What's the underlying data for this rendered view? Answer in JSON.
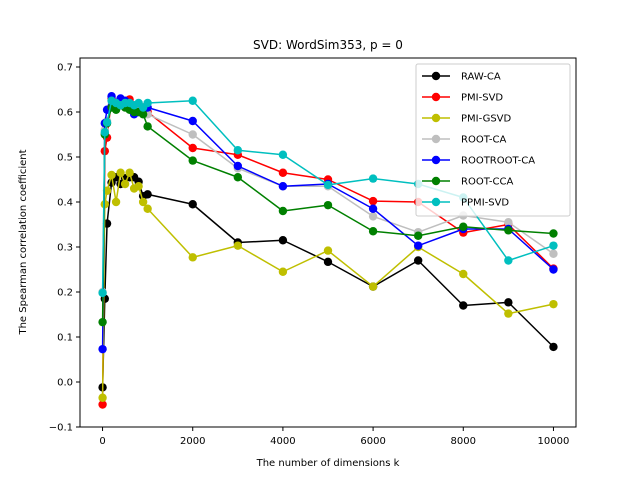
{
  "chart_data": {
    "type": "line",
    "title": "SVD: WordSim353, p = 0",
    "xlabel": "The number of dimensions k",
    "ylabel": "The Spearman correlation coefficient",
    "xlim": [
      -500,
      10500
    ],
    "ylim": [
      -0.1,
      0.72
    ],
    "xticks": [
      0,
      2000,
      4000,
      6000,
      8000,
      10000
    ],
    "xtick_labels": [
      "0",
      "2000",
      "4000",
      "6000",
      "8000",
      "10000"
    ],
    "yticks": [
      -0.1,
      0.0,
      0.1,
      0.2,
      0.3,
      0.4,
      0.5,
      0.6,
      0.7
    ],
    "ytick_labels": [
      "−0.1",
      "0.0",
      "0.1",
      "0.2",
      "0.3",
      "0.4",
      "0.5",
      "0.6",
      "0.7"
    ],
    "grid": false,
    "legend_position": "top-right",
    "series": [
      {
        "name": "RAW-CA",
        "color": "#000000",
        "points": [
          [
            1,
            -0.012
          ],
          [
            50,
            0.185
          ],
          [
            100,
            0.352
          ],
          [
            200,
            0.443
          ],
          [
            300,
            0.455
          ],
          [
            400,
            0.44
          ],
          [
            500,
            0.453
          ],
          [
            600,
            0.455
          ],
          [
            700,
            0.455
          ],
          [
            800,
            0.445
          ],
          [
            900,
            0.413
          ],
          [
            1000,
            0.417
          ],
          [
            2000,
            0.395
          ],
          [
            3000,
            0.31
          ],
          [
            4000,
            0.315
          ],
          [
            5000,
            0.267
          ],
          [
            6000,
            0.212
          ],
          [
            7000,
            0.27
          ],
          [
            8000,
            0.17
          ],
          [
            9000,
            0.177
          ],
          [
            10000,
            0.078
          ]
        ]
      },
      {
        "name": "PMI-SVD",
        "color": "#ff0000",
        "points": [
          [
            1,
            -0.05
          ],
          [
            50,
            0.513
          ],
          [
            100,
            0.543
          ],
          [
            200,
            0.63
          ],
          [
            300,
            0.62
          ],
          [
            400,
            0.625
          ],
          [
            500,
            0.62
          ],
          [
            600,
            0.628
          ],
          [
            700,
            0.6
          ],
          [
            800,
            0.605
          ],
          [
            900,
            0.61
          ],
          [
            1000,
            0.6
          ],
          [
            2000,
            0.52
          ],
          [
            3000,
            0.505
          ],
          [
            4000,
            0.465
          ],
          [
            5000,
            0.45
          ],
          [
            6000,
            0.402
          ],
          [
            7000,
            0.4
          ],
          [
            8000,
            0.332
          ],
          [
            9000,
            0.35
          ],
          [
            10000,
            0.252
          ]
        ]
      },
      {
        "name": "PMI-GSVD",
        "color": "#bfbf00",
        "points": [
          [
            1,
            -0.035
          ],
          [
            50,
            0.395
          ],
          [
            100,
            0.425
          ],
          [
            200,
            0.46
          ],
          [
            300,
            0.4
          ],
          [
            400,
            0.465
          ],
          [
            500,
            0.44
          ],
          [
            600,
            0.465
          ],
          [
            700,
            0.43
          ],
          [
            800,
            0.435
          ],
          [
            900,
            0.4
          ],
          [
            1000,
            0.385
          ],
          [
            2000,
            0.277
          ],
          [
            3000,
            0.303
          ],
          [
            4000,
            0.245
          ],
          [
            5000,
            0.292
          ],
          [
            6000,
            0.212
          ],
          [
            7000,
            0.3
          ],
          [
            8000,
            0.24
          ],
          [
            9000,
            0.152
          ],
          [
            10000,
            0.173
          ]
        ]
      },
      {
        "name": "ROOT-CA",
        "color": "#bfbfbf",
        "points": [
          [
            1,
            0.2
          ],
          [
            50,
            0.56
          ],
          [
            100,
            0.58
          ],
          [
            200,
            0.615
          ],
          [
            300,
            0.61
          ],
          [
            400,
            0.62
          ],
          [
            500,
            0.62
          ],
          [
            600,
            0.615
          ],
          [
            700,
            0.61
          ],
          [
            800,
            0.61
          ],
          [
            900,
            0.605
          ],
          [
            1000,
            0.595
          ],
          [
            2000,
            0.55
          ],
          [
            3000,
            0.475
          ],
          [
            4000,
            0.435
          ],
          [
            5000,
            0.435
          ],
          [
            6000,
            0.368
          ],
          [
            7000,
            0.333
          ],
          [
            8000,
            0.37
          ],
          [
            9000,
            0.355
          ],
          [
            10000,
            0.285
          ]
        ]
      },
      {
        "name": "ROOTROOT-CA",
        "color": "#0000ff",
        "points": [
          [
            1,
            0.073
          ],
          [
            50,
            0.575
          ],
          [
            100,
            0.605
          ],
          [
            200,
            0.635
          ],
          [
            300,
            0.62
          ],
          [
            400,
            0.63
          ],
          [
            500,
            0.625
          ],
          [
            600,
            0.62
          ],
          [
            700,
            0.595
          ],
          [
            800,
            0.6
          ],
          [
            900,
            0.605
          ],
          [
            1000,
            0.61
          ],
          [
            2000,
            0.58
          ],
          [
            3000,
            0.48
          ],
          [
            4000,
            0.435
          ],
          [
            5000,
            0.44
          ],
          [
            6000,
            0.385
          ],
          [
            7000,
            0.303
          ],
          [
            8000,
            0.34
          ],
          [
            9000,
            0.34
          ],
          [
            10000,
            0.25
          ]
        ]
      },
      {
        "name": "ROOT-CCA",
        "color": "#008000",
        "points": [
          [
            1,
            0.133
          ],
          [
            50,
            0.55
          ],
          [
            100,
            0.575
          ],
          [
            200,
            0.61
          ],
          [
            300,
            0.605
          ],
          [
            400,
            0.615
          ],
          [
            500,
            0.61
          ],
          [
            600,
            0.605
          ],
          [
            700,
            0.6
          ],
          [
            800,
            0.6
          ],
          [
            900,
            0.595
          ],
          [
            1000,
            0.568
          ],
          [
            2000,
            0.492
          ],
          [
            3000,
            0.455
          ],
          [
            4000,
            0.38
          ],
          [
            5000,
            0.393
          ],
          [
            6000,
            0.335
          ],
          [
            7000,
            0.325
          ],
          [
            8000,
            0.345
          ],
          [
            9000,
            0.337
          ],
          [
            10000,
            0.33
          ]
        ]
      },
      {
        "name": "PPMI-SVD",
        "color": "#00bfbf",
        "points": [
          [
            1,
            0.198
          ],
          [
            50,
            0.555
          ],
          [
            100,
            0.577
          ],
          [
            200,
            0.625
          ],
          [
            300,
            0.62
          ],
          [
            400,
            0.615
          ],
          [
            500,
            0.62
          ],
          [
            600,
            0.62
          ],
          [
            700,
            0.615
          ],
          [
            800,
            0.62
          ],
          [
            900,
            0.61
          ],
          [
            1000,
            0.62
          ],
          [
            2000,
            0.625
          ],
          [
            3000,
            0.515
          ],
          [
            4000,
            0.505
          ],
          [
            5000,
            0.438
          ],
          [
            6000,
            0.452
          ],
          [
            7000,
            0.44
          ],
          [
            8000,
            0.41
          ],
          [
            9000,
            0.27
          ],
          [
            10000,
            0.303
          ]
        ]
      }
    ]
  }
}
